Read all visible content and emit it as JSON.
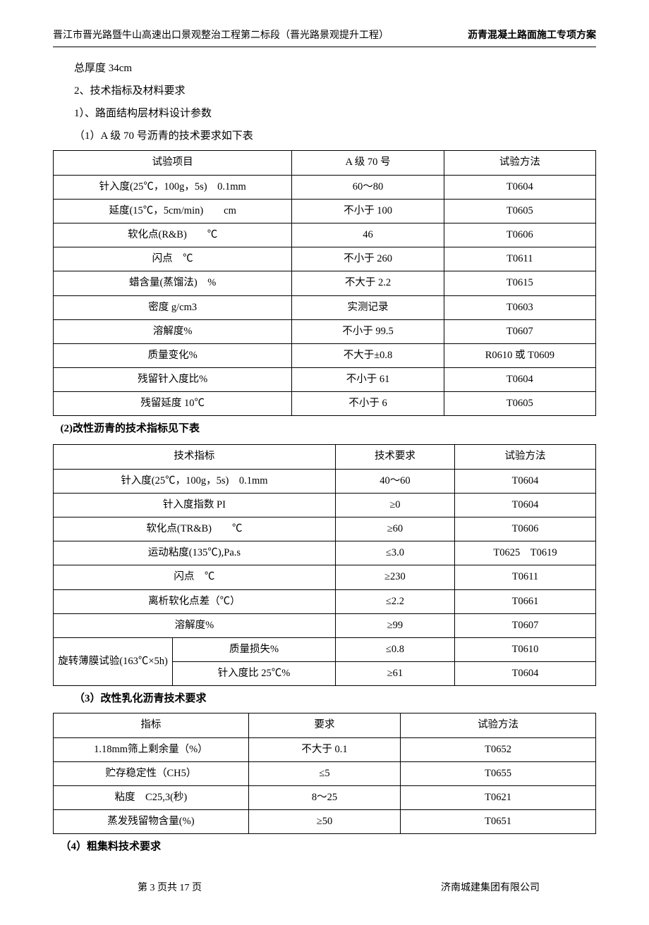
{
  "header": {
    "left": "晋江市晋光路暨牛山高速出口景观整治工程第二标段（晋光路景观提升工程）",
    "right": "沥青混凝土路面施工专项方案"
  },
  "intro": {
    "line1": "总厚度 34cm",
    "line2": "2、技术指标及材料要求",
    "line3": "1）、路面结构层材料设计参数",
    "line4": "（1）A 级 70 号沥青的技术要求如下表"
  },
  "table1": {
    "headers": [
      "试验项目",
      "A 级 70 号",
      "试验方法"
    ],
    "rows": [
      [
        "针入度(25℃，100g，5s)　0.1mm",
        "60～80",
        "T0604"
      ],
      [
        "延度(15℃，5cm/min)　　cm",
        "不小于 100",
        "T0605"
      ],
      [
        "软化点(R&B)　　℃",
        "46",
        "T0606"
      ],
      [
        "闪点　℃",
        "不小于 260",
        "T0611"
      ],
      [
        "蜡含量(蒸馏法)　%",
        "不大于 2.2",
        "T0615"
      ],
      [
        "密度 g/cm3",
        "实测记录",
        "T0603"
      ],
      [
        "溶解度%",
        "不小于 99.5",
        "T0607"
      ],
      [
        "质量变化%",
        "不大于±0.8",
        "R0610 或 T0609"
      ],
      [
        "残留针入度比%",
        "不小于 61",
        "T0604"
      ],
      [
        "残留延度 10℃",
        "不小于 6",
        "T0605"
      ]
    ]
  },
  "title2": "(2)改性沥青的技术指标见下表",
  "table2": {
    "headers": [
      "技术指标",
      "技术要求",
      "试验方法"
    ],
    "rows": [
      [
        "针入度(25℃，100g，5s)　0.1mm",
        "40～60",
        "T0604"
      ],
      [
        "针入度指数 PI",
        "≥0",
        "T0604"
      ],
      [
        "软化点(TR&B)　　℃",
        "≥60",
        "T0606"
      ],
      [
        "运动粘度(135℃),Pa.s",
        "≤3.0",
        "T0625　T0619"
      ],
      [
        "闪点　℃",
        "≥230",
        "T0611"
      ],
      [
        "离析软化点差（℃）",
        "≤2.2",
        "T0661"
      ],
      [
        "溶解度%",
        "≥99",
        "T0607"
      ]
    ],
    "merged": {
      "left": "旋转薄膜试验(163℃×5h)",
      "r1": [
        "质量损失%",
        "≤0.8",
        "T0610"
      ],
      "r2": [
        "针入度比 25℃%",
        "≥61",
        "T0604"
      ]
    }
  },
  "title3": "（3）改性乳化沥青技术要求",
  "table3": {
    "headers": [
      "指标",
      "要求",
      "试验方法"
    ],
    "rows": [
      [
        "1.18mm筛上剩余量（%）",
        "不大于 0.1",
        "T0652"
      ],
      [
        "贮存稳定性（CH5）",
        "≤5",
        "T0655"
      ],
      [
        "粘度　C25,3(秒)",
        "8～25",
        "T0621"
      ],
      [
        "蒸发残留物含量(%)",
        "≥50",
        "T0651"
      ]
    ]
  },
  "title4": "（4）粗集料技术要求",
  "footer": {
    "left": "第 3 页共 17 页",
    "right": "济南城建集团有限公司"
  }
}
